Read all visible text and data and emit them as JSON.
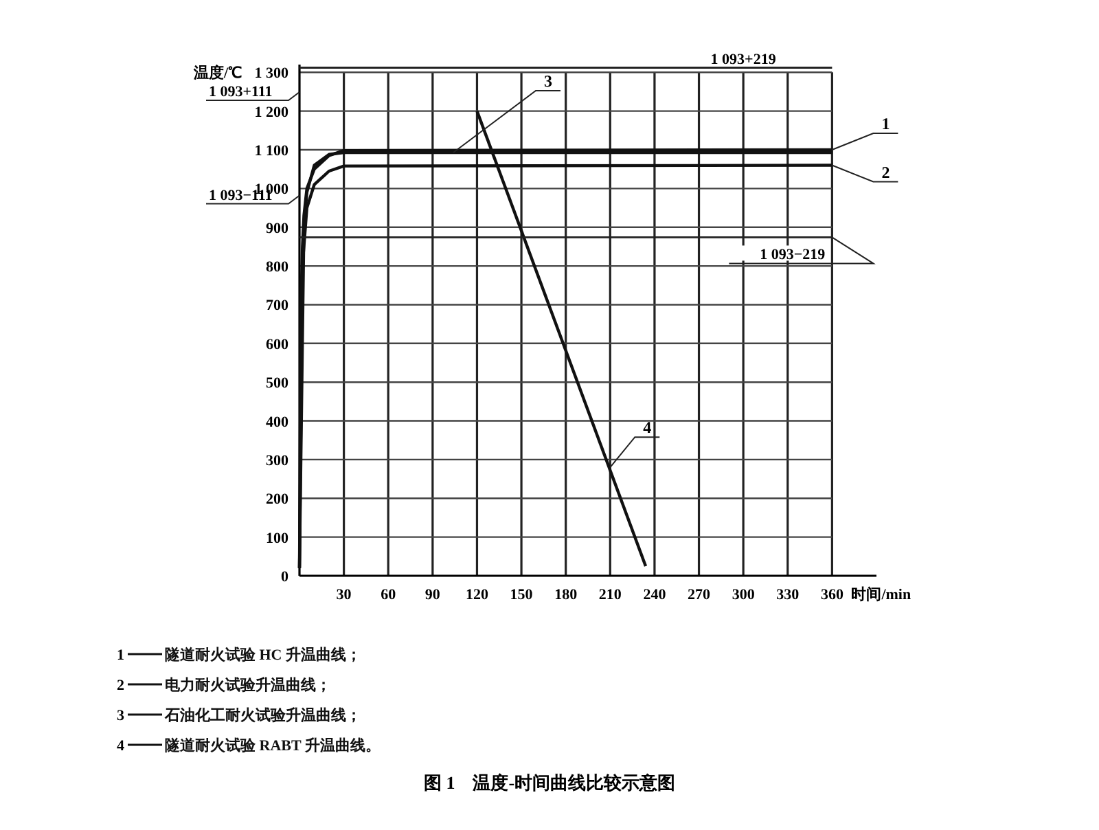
{
  "chart_data": {
    "type": "line",
    "ylabel": "温度/℃",
    "xlabel": "时间/min",
    "title": "图 1　温度-时间曲线比较示意图",
    "xlim": [
      0,
      390
    ],
    "ylim": [
      0,
      1320
    ],
    "xticks": [
      30,
      60,
      90,
      120,
      150,
      180,
      210,
      240,
      270,
      300,
      330,
      360
    ],
    "yticks": [
      0,
      100,
      200,
      300,
      400,
      500,
      600,
      700,
      800,
      900,
      {
        "value": 1000,
        "label": "1 000"
      },
      {
        "value": 1100,
        "label": "1 100"
      },
      {
        "value": 1200,
        "label": "1 200"
      },
      {
        "value": 1300,
        "label": "1 300"
      }
    ],
    "grid": true,
    "legend": "bottom",
    "marker": "none",
    "line_style": "solid",
    "series": [
      {
        "name": "隧道耐火试验 HC 升温曲线；",
        "color": "#111111",
        "x": [
          0,
          1,
          2,
          3,
          5,
          10,
          20,
          30,
          360
        ],
        "values": [
          20,
          700,
          850,
          930,
          1000,
          1050,
          1085,
          1098,
          1100
        ]
      },
      {
        "name": "电力耐火试验升温曲线；",
        "color": "#111111",
        "x": [
          0,
          2,
          5,
          10,
          20,
          30,
          360
        ],
        "values": [
          20,
          800,
          950,
          1010,
          1045,
          1058,
          1060
        ]
      },
      {
        "name": "石油化工耐火试验升温曲线；",
        "color": "#111111",
        "x": [
          0,
          3,
          5,
          10,
          20,
          30,
          360
        ],
        "values": [
          20,
          900,
          990,
          1060,
          1088,
          1093,
          1093
        ]
      },
      {
        "name": "隧道耐火试验 RABT 升温曲线。",
        "color": "#111111",
        "x": [
          120,
          234
        ],
        "values": [
          1200,
          25
        ]
      },
      {
        "color": "#222222",
        "x": [
          0,
          360
        ],
        "values": [
          1312,
          1312
        ]
      },
      {
        "color": "#222222",
        "x": [
          0,
          360
        ],
        "values": [
          874,
          874
        ]
      }
    ],
    "annotations": [
      {
        "text": "1",
        "x": 360,
        "y": 1100
      },
      {
        "text": "2",
        "x": 360,
        "y": 1060
      },
      {
        "text": "3",
        "x": 104,
        "y": 1093
      },
      {
        "text": "4",
        "x": 210,
        "y": 280
      },
      {
        "text": "1 093+219",
        "x": 300,
        "y": 1312
      },
      {
        "text": "1 093−219",
        "x": 360,
        "y": 874
      },
      "1 093+111",
      {
        "text": "1 093−111",
        "x": 0,
        "y": 982
      }
    ]
  }
}
